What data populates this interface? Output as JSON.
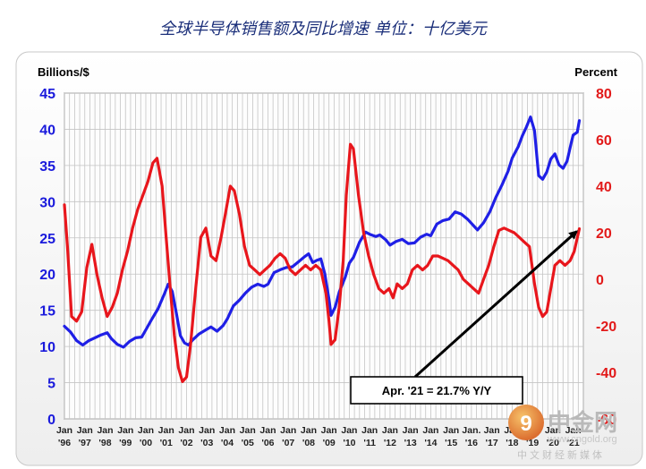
{
  "chart_data": {
    "type": "line",
    "title": "全球半导体销售额及同比增速 单位：十亿美元",
    "left_axis": {
      "label": "Billions/$",
      "ticks": [
        0,
        5,
        10,
        15,
        20,
        25,
        30,
        35,
        40,
        45
      ],
      "range": [
        0,
        45
      ],
      "color": "#1a1adc"
    },
    "right_axis": {
      "label": "Percent",
      "ticks": [
        -60,
        -40,
        -20,
        0,
        20,
        40,
        60,
        80
      ],
      "range": [
        -60,
        80
      ],
      "color": "#e21a1a"
    },
    "x_range": [
      1996.0,
      2021.5
    ],
    "x_ticks": [
      {
        "x": 1996,
        "top": "Jan",
        "bottom": "'96"
      },
      {
        "x": 1997,
        "top": "Jan",
        "bottom": "'97"
      },
      {
        "x": 1998,
        "top": "Jan",
        "bottom": "'98"
      },
      {
        "x": 1999,
        "top": "Jan",
        "bottom": "'99"
      },
      {
        "x": 2000,
        "top": "Jan",
        "bottom": "'00"
      },
      {
        "x": 2001,
        "top": "Jan",
        "bottom": "'01"
      },
      {
        "x": 2002,
        "top": "Jan",
        "bottom": "'02"
      },
      {
        "x": 2003,
        "top": "Jan",
        "bottom": "'03"
      },
      {
        "x": 2004,
        "top": "Jan",
        "bottom": "'04"
      },
      {
        "x": 2005,
        "top": "Jan",
        "bottom": "'05"
      },
      {
        "x": 2006,
        "top": "Jan",
        "bottom": "'06"
      },
      {
        "x": 2007,
        "top": "Jan",
        "bottom": "'07"
      },
      {
        "x": 2008,
        "top": "Jan",
        "bottom": "'08"
      },
      {
        "x": 2009,
        "top": "Jan",
        "bottom": "'09"
      },
      {
        "x": 2010,
        "top": "Jan",
        "bottom": "'10"
      },
      {
        "x": 2011,
        "top": "Jan",
        "bottom": "'11"
      },
      {
        "x": 2012,
        "top": "Jan",
        "bottom": "'12"
      },
      {
        "x": 2013,
        "top": "Jan",
        "bottom": "'13"
      },
      {
        "x": 2014,
        "top": "Jan",
        "bottom": "'14"
      },
      {
        "x": 2015,
        "top": "Jan",
        "bottom": "'15"
      },
      {
        "x": 2016,
        "top": "Jan.",
        "bottom": "'16"
      },
      {
        "x": 2017,
        "top": "Jan",
        "bottom": "'17"
      },
      {
        "x": 2018,
        "top": "Jan",
        "bottom": "'18"
      },
      {
        "x": 2019,
        "top": "Jan",
        "bottom": "'19"
      },
      {
        "x": 2020,
        "top": "Jan",
        "bottom": "'20"
      },
      {
        "x": 2021,
        "top": "Jan",
        "bottom": "'21"
      }
    ],
    "grid": true,
    "series": [
      {
        "axis": "left",
        "color": "#1f1fe6",
        "points": [
          [
            1996.0,
            12.8
          ],
          [
            1996.3,
            12.0
          ],
          [
            1996.6,
            10.8
          ],
          [
            1996.9,
            10.2
          ],
          [
            1997.2,
            10.8
          ],
          [
            1997.5,
            11.2
          ],
          [
            1997.8,
            11.6
          ],
          [
            1998.1,
            11.9
          ],
          [
            1998.3,
            11.1
          ],
          [
            1998.6,
            10.3
          ],
          [
            1998.9,
            9.9
          ],
          [
            1999.2,
            10.7
          ],
          [
            1999.5,
            11.2
          ],
          [
            1999.8,
            11.3
          ],
          [
            2000.0,
            12.3
          ],
          [
            2000.3,
            13.8
          ],
          [
            2000.6,
            15.2
          ],
          [
            2000.9,
            17.2
          ],
          [
            2001.1,
            18.6
          ],
          [
            2001.3,
            17.6
          ],
          [
            2001.5,
            14.6
          ],
          [
            2001.7,
            11.5
          ],
          [
            2001.9,
            10.5
          ],
          [
            2002.1,
            10.2
          ],
          [
            2002.3,
            10.9
          ],
          [
            2002.6,
            11.7
          ],
          [
            2002.9,
            12.2
          ],
          [
            2003.2,
            12.7
          ],
          [
            2003.5,
            12.1
          ],
          [
            2003.8,
            12.9
          ],
          [
            2004.0,
            13.8
          ],
          [
            2004.3,
            15.6
          ],
          [
            2004.6,
            16.4
          ],
          [
            2004.9,
            17.4
          ],
          [
            2005.2,
            18.2
          ],
          [
            2005.5,
            18.6
          ],
          [
            2005.8,
            18.3
          ],
          [
            2006.0,
            18.6
          ],
          [
            2006.3,
            20.2
          ],
          [
            2006.6,
            20.6
          ],
          [
            2006.9,
            20.9
          ],
          [
            2007.2,
            21.0
          ],
          [
            2007.5,
            21.7
          ],
          [
            2007.8,
            22.4
          ],
          [
            2008.0,
            22.8
          ],
          [
            2008.2,
            21.6
          ],
          [
            2008.4,
            21.9
          ],
          [
            2008.6,
            22.1
          ],
          [
            2008.8,
            20.0
          ],
          [
            2009.0,
            16.5
          ],
          [
            2009.1,
            14.3
          ],
          [
            2009.3,
            15.4
          ],
          [
            2009.5,
            17.5
          ],
          [
            2009.8,
            19.6
          ],
          [
            2010.0,
            21.5
          ],
          [
            2010.2,
            22.3
          ],
          [
            2010.5,
            24.4
          ],
          [
            2010.8,
            25.8
          ],
          [
            2011.0,
            25.5
          ],
          [
            2011.3,
            25.2
          ],
          [
            2011.5,
            25.4
          ],
          [
            2011.8,
            24.7
          ],
          [
            2012.0,
            24.0
          ],
          [
            2012.3,
            24.5
          ],
          [
            2012.6,
            24.8
          ],
          [
            2012.9,
            24.2
          ],
          [
            2013.2,
            24.3
          ],
          [
            2013.5,
            25.1
          ],
          [
            2013.8,
            25.5
          ],
          [
            2014.0,
            25.3
          ],
          [
            2014.3,
            26.9
          ],
          [
            2014.6,
            27.4
          ],
          [
            2014.9,
            27.6
          ],
          [
            2015.2,
            28.6
          ],
          [
            2015.5,
            28.3
          ],
          [
            2015.8,
            27.6
          ],
          [
            2016.0,
            27.0
          ],
          [
            2016.3,
            26.1
          ],
          [
            2016.6,
            27.1
          ],
          [
            2016.9,
            28.6
          ],
          [
            2017.2,
            30.6
          ],
          [
            2017.5,
            32.3
          ],
          [
            2017.8,
            34.2
          ],
          [
            2018.0,
            36.0
          ],
          [
            2018.3,
            37.6
          ],
          [
            2018.5,
            39.1
          ],
          [
            2018.7,
            40.3
          ],
          [
            2018.9,
            41.7
          ],
          [
            2019.1,
            39.8
          ],
          [
            2019.3,
            33.6
          ],
          [
            2019.5,
            33.1
          ],
          [
            2019.7,
            34.1
          ],
          [
            2019.9,
            35.9
          ],
          [
            2020.1,
            36.6
          ],
          [
            2020.3,
            35.1
          ],
          [
            2020.5,
            34.6
          ],
          [
            2020.7,
            35.6
          ],
          [
            2020.9,
            38.1
          ],
          [
            2021.0,
            39.2
          ],
          [
            2021.2,
            39.6
          ],
          [
            2021.3,
            41.2
          ]
        ]
      },
      {
        "axis": "right",
        "color": "#e8161c",
        "points": [
          [
            1996.0,
            32
          ],
          [
            1996.15,
            14
          ],
          [
            1996.35,
            -16
          ],
          [
            1996.6,
            -18
          ],
          [
            1996.85,
            -14
          ],
          [
            1997.1,
            5
          ],
          [
            1997.35,
            15
          ],
          [
            1997.6,
            2
          ],
          [
            1997.85,
            -8
          ],
          [
            1998.1,
            -16
          ],
          [
            1998.35,
            -12
          ],
          [
            1998.6,
            -6
          ],
          [
            1998.85,
            4
          ],
          [
            1999.1,
            12
          ],
          [
            1999.35,
            22
          ],
          [
            1999.6,
            30
          ],
          [
            1999.85,
            36
          ],
          [
            2000.1,
            42
          ],
          [
            2000.35,
            50
          ],
          [
            2000.55,
            52
          ],
          [
            2000.8,
            40
          ],
          [
            2001.0,
            18
          ],
          [
            2001.2,
            -4
          ],
          [
            2001.4,
            -24
          ],
          [
            2001.6,
            -38
          ],
          [
            2001.8,
            -44
          ],
          [
            2002.0,
            -42
          ],
          [
            2002.2,
            -28
          ],
          [
            2002.45,
            -4
          ],
          [
            2002.7,
            18
          ],
          [
            2002.95,
            22
          ],
          [
            2003.2,
            10
          ],
          [
            2003.45,
            8
          ],
          [
            2003.7,
            18
          ],
          [
            2003.95,
            30
          ],
          [
            2004.15,
            40
          ],
          [
            2004.35,
            38
          ],
          [
            2004.6,
            28
          ],
          [
            2004.85,
            14
          ],
          [
            2005.1,
            6
          ],
          [
            2005.35,
            4
          ],
          [
            2005.6,
            2
          ],
          [
            2005.85,
            4
          ],
          [
            2006.1,
            6
          ],
          [
            2006.35,
            9
          ],
          [
            2006.6,
            11
          ],
          [
            2006.85,
            9
          ],
          [
            2007.1,
            4
          ],
          [
            2007.35,
            2
          ],
          [
            2007.6,
            4
          ],
          [
            2007.85,
            6
          ],
          [
            2008.1,
            4
          ],
          [
            2008.35,
            6
          ],
          [
            2008.6,
            4
          ],
          [
            2008.85,
            -6
          ],
          [
            2009.0,
            -18
          ],
          [
            2009.1,
            -28
          ],
          [
            2009.3,
            -26
          ],
          [
            2009.5,
            -12
          ],
          [
            2009.7,
            8
          ],
          [
            2009.85,
            36
          ],
          [
            2010.05,
            58
          ],
          [
            2010.2,
            56
          ],
          [
            2010.45,
            36
          ],
          [
            2010.7,
            20
          ],
          [
            2010.95,
            10
          ],
          [
            2011.2,
            2
          ],
          [
            2011.45,
            -4
          ],
          [
            2011.7,
            -6
          ],
          [
            2011.95,
            -4
          ],
          [
            2012.15,
            -8
          ],
          [
            2012.35,
            -2
          ],
          [
            2012.6,
            -4
          ],
          [
            2012.85,
            -2
          ],
          [
            2013.1,
            4
          ],
          [
            2013.35,
            6
          ],
          [
            2013.6,
            4
          ],
          [
            2013.85,
            6
          ],
          [
            2014.1,
            10
          ],
          [
            2014.35,
            10
          ],
          [
            2014.6,
            9
          ],
          [
            2014.85,
            8
          ],
          [
            2015.1,
            6
          ],
          [
            2015.35,
            4
          ],
          [
            2015.6,
            0
          ],
          [
            2015.85,
            -2
          ],
          [
            2016.1,
            -4
          ],
          [
            2016.35,
            -6
          ],
          [
            2016.6,
            0
          ],
          [
            2016.85,
            6
          ],
          [
            2017.1,
            14
          ],
          [
            2017.35,
            21
          ],
          [
            2017.6,
            22
          ],
          [
            2017.85,
            21
          ],
          [
            2018.1,
            20
          ],
          [
            2018.35,
            18
          ],
          [
            2018.6,
            16
          ],
          [
            2018.85,
            14
          ],
          [
            2019.1,
            -2
          ],
          [
            2019.3,
            -12
          ],
          [
            2019.5,
            -16
          ],
          [
            2019.7,
            -14
          ],
          [
            2019.9,
            -4
          ],
          [
            2020.1,
            6
          ],
          [
            2020.35,
            8
          ],
          [
            2020.6,
            6
          ],
          [
            2020.85,
            8
          ],
          [
            2021.05,
            12
          ],
          [
            2021.3,
            21.7
          ]
        ]
      }
    ],
    "annotation": {
      "text": "Apr. '21 = 21.7% Y/Y",
      "target": [
        2021.3,
        21.7
      ],
      "target_axis": "right"
    }
  },
  "watermark": {
    "text": "中金网",
    "url": "www.cngold.org",
    "subtitle": "中文财经新媒体"
  }
}
